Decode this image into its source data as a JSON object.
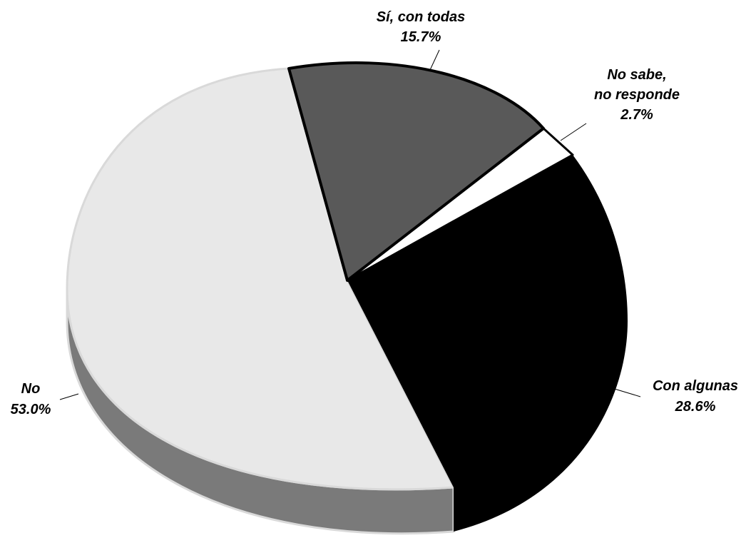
{
  "chart_data": {
    "type": "pie",
    "style": "3d-exploded",
    "legend": "none",
    "slices": [
      {
        "name": "Sí, con todas",
        "value": 15.7,
        "label": "15.7%",
        "color": "#595959"
      },
      {
        "name": "No sabe, no responde",
        "value": 2.7,
        "label": "2.7%",
        "color": "#ffffff"
      },
      {
        "name": "Con algunas",
        "value": 28.6,
        "label": "28.6%",
        "color": "#000000"
      },
      {
        "name": "No",
        "value": 53.0,
        "label": "53.0%",
        "color": "#e8e8e8"
      }
    ],
    "labels": {
      "si_line1": "Sí, con todas",
      "si_line2": "15.7%",
      "nsnr_line1": "No sabe,",
      "nsnr_line2": "no responde",
      "nsnr_line3": "2.7%",
      "con_line1": "Con algunas",
      "con_line2": "28.6%",
      "no_line1": "No",
      "no_line2": "53.0%"
    },
    "side_color": "#7a7a7a"
  }
}
